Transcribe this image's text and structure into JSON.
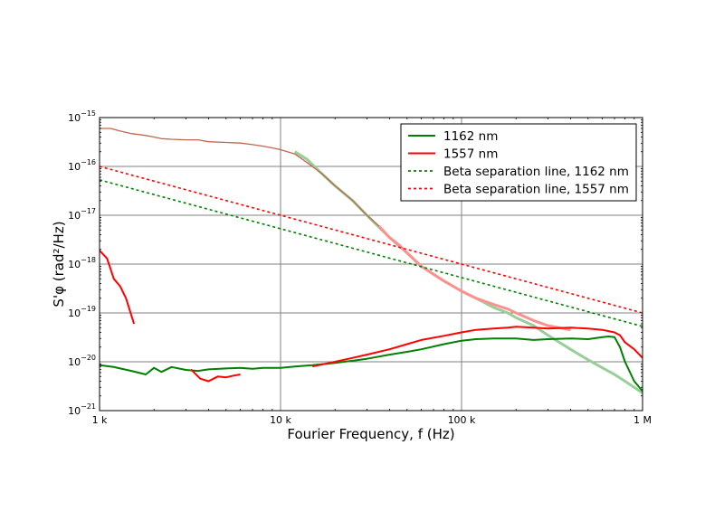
{
  "chart_data": {
    "type": "line",
    "title": "",
    "xlabel": "Fourier Frequency, f (Hz)",
    "ylabel": "S'φ (rad²/Hz)",
    "x_scale": "log",
    "y_scale": "log",
    "xlim": [
      1000,
      1000000
    ],
    "ylim": [
      1e-21,
      1e-15
    ],
    "grid": true,
    "legend_position": "top-right",
    "x_ticks": [
      {
        "value": 1000,
        "label": "1 k"
      },
      {
        "value": 10000,
        "label": "10 k"
      },
      {
        "value": 100000,
        "label": "100 k"
      },
      {
        "value": 1000000,
        "label": "1 M"
      }
    ],
    "y_ticks": [
      {
        "value": 1e-15,
        "base": "10",
        "exp": "−15"
      },
      {
        "value": 1e-16,
        "base": "10",
        "exp": "−16"
      },
      {
        "value": 1e-17,
        "base": "10",
        "exp": "−17"
      },
      {
        "value": 1e-18,
        "base": "10",
        "exp": "−18"
      },
      {
        "value": 1e-19,
        "base": "10",
        "exp": "−19"
      },
      {
        "value": 1e-20,
        "base": "10",
        "exp": "−20"
      },
      {
        "value": 1e-21,
        "base": "10",
        "exp": "−21"
      }
    ],
    "series": [
      {
        "name": "1162 nm",
        "color": "#008000",
        "style": "solid",
        "x": [
          1000,
          1200,
          1500,
          1800,
          2000,
          2200,
          2500,
          3000,
          3500,
          4000,
          5000,
          6000,
          7000,
          8000,
          10000,
          12000,
          15000,
          20000,
          25000,
          30000,
          40000,
          50000,
          60000,
          80000,
          100000,
          120000,
          150000,
          180000,
          200000,
          250000,
          300000,
          400000,
          500000,
          600000,
          650000,
          700000,
          750000,
          800000,
          900000,
          1000000
        ],
        "y": [
          8.5e-21,
          7.8e-21,
          6.5e-21,
          5.5e-21,
          7.5e-21,
          6.2e-21,
          7.8e-21,
          6.8e-21,
          6.5e-21,
          7e-21,
          7.3e-21,
          7.5e-21,
          7.2e-21,
          7.5e-21,
          7.5e-21,
          8e-21,
          8.5e-21,
          9.5e-21,
          1.05e-20,
          1.15e-20,
          1.4e-20,
          1.6e-20,
          1.8e-20,
          2.3e-20,
          2.7e-20,
          2.9e-20,
          3e-20,
          3e-20,
          3e-20,
          2.8e-20,
          2.9e-20,
          3e-20,
          2.9e-20,
          3.2e-20,
          3.3e-20,
          3.2e-20,
          2e-20,
          1e-20,
          4e-21,
          2.5e-21
        ]
      },
      {
        "name": "1557 nm",
        "color": "#ff0000",
        "style": "solid",
        "x": [
          1000,
          1100,
          1200,
          1300,
          1400,
          1550
        ],
        "y": [
          1.9e-18,
          1.3e-18,
          5e-19,
          3.5e-19,
          2e-19,
          6e-20
        ]
      },
      {
        "name": "",
        "color": "#ff0000",
        "style": "solid",
        "x": [
          3200,
          3600,
          4000,
          4500,
          5000,
          5500,
          6000
        ],
        "y": [
          7e-21,
          4.5e-21,
          4e-21,
          5e-21,
          4.8e-21,
          5.2e-21,
          5.5e-21
        ]
      },
      {
        "name": "",
        "color": "#ff0000",
        "style": "solid",
        "x": [
          15000,
          20000,
          25000,
          30000,
          40000,
          50000,
          60000,
          80000,
          100000,
          120000,
          150000,
          180000,
          200000,
          250000,
          300000,
          400000,
          500000,
          600000,
          700000,
          750000,
          800000,
          900000,
          1000000
        ],
        "y": [
          8e-21,
          1e-20,
          1.2e-20,
          1.4e-20,
          1.8e-20,
          2.3e-20,
          2.8e-20,
          3.4e-20,
          4e-20,
          4.5e-20,
          4.8e-20,
          5e-20,
          5.2e-20,
          5e-20,
          4.8e-20,
          5e-20,
          4.8e-20,
          4.5e-20,
          4e-20,
          3.5e-20,
          2.5e-20,
          1.8e-20,
          1.2e-20
        ]
      },
      {
        "name": "",
        "color": "#c0674f",
        "style": "solid",
        "x": [
          1000,
          1150,
          1300,
          1500,
          1800,
          2000,
          2200,
          2500,
          3000,
          3500,
          4000,
          5000,
          6000,
          7000,
          8000,
          9000,
          10000,
          12000,
          14000,
          17000,
          20000,
          25000,
          30000,
          35000
        ],
        "y": [
          6e-16,
          6e-16,
          5.3e-16,
          4.7e-16,
          4.3e-16,
          4e-16,
          3.7e-16,
          3.6e-16,
          3.5e-16,
          3.5e-16,
          3.2e-16,
          3.1e-16,
          3e-16,
          2.8e-16,
          2.6e-16,
          2.4e-16,
          2.2e-16,
          1.8e-16,
          1.2e-16,
          7e-17,
          4e-17,
          2e-17,
          1e-17,
          6e-18
        ]
      },
      {
        "name": "",
        "color": "#ff9090",
        "style": "solid",
        "x": [
          35000,
          40000,
          45000,
          50000,
          60000,
          80000,
          100000,
          120000,
          150000,
          180000,
          200000,
          250000,
          300000,
          400000
        ],
        "y": [
          6e-18,
          3.5e-18,
          2.5e-18,
          1.7e-18,
          9e-19,
          4.5e-19,
          2.8e-19,
          2e-19,
          1.5e-19,
          1.2e-19,
          1e-19,
          7e-20,
          5.5e-20,
          4.5e-20
        ]
      },
      {
        "name": "",
        "color": "#98cf98",
        "style": "solid",
        "x": [
          12000,
          14000,
          17000,
          20000,
          25000,
          30000,
          40000,
          50000,
          60000,
          80000,
          100000,
          120000,
          150000,
          180000,
          200000,
          250000,
          300000,
          400000,
          500000,
          600000,
          700000,
          800000,
          900000,
          1000000
        ],
        "y": [
          2e-16,
          1.4e-16,
          7e-17,
          4e-17,
          2e-17,
          1e-17,
          3.5e-18,
          1.7e-18,
          9e-19,
          4.5e-19,
          2.8e-19,
          2e-19,
          1.3e-19,
          1e-19,
          8e-20,
          5.5e-20,
          3.5e-20,
          1.8e-20,
          1.1e-20,
          7.5e-21,
          5.5e-21,
          4e-21,
          3e-21,
          2.3e-21
        ]
      },
      {
        "name": "Beta separation line, 1162 nm",
        "color": "#008000",
        "style": "dashed",
        "x": [
          1000,
          1000000
        ],
        "y": [
          5.3e-17,
          5.3e-20
        ]
      },
      {
        "name": "Beta separation line, 1557 nm",
        "color": "#ff0000",
        "style": "dashed",
        "x": [
          1000,
          1000000
        ],
        "y": [
          1e-16,
          1e-19
        ]
      }
    ]
  }
}
